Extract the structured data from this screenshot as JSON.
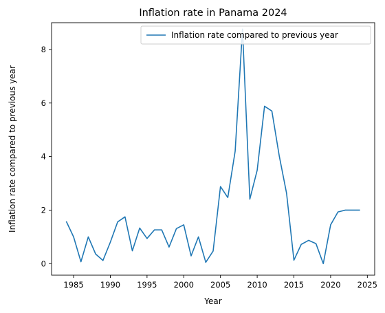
{
  "chart_data": {
    "type": "line",
    "title": "Inflation rate in Panama 2024",
    "xlabel": "Year",
    "ylabel": "Inflation rate compared to previous year",
    "xlim": [
      1982.0,
      2026.0
    ],
    "ylim": [
      -0.43,
      9.0
    ],
    "xticks": [
      1985,
      1990,
      1995,
      2000,
      2005,
      2010,
      2015,
      2020,
      2025
    ],
    "yticks": [
      0,
      2,
      4,
      6,
      8
    ],
    "grid": false,
    "legend_position": "top-right",
    "series": [
      {
        "name": "Inflation rate compared to previous year",
        "color": "#1f77b4",
        "x": [
          1984,
          1985,
          1986,
          1987,
          1988,
          1989,
          1990,
          1991,
          1992,
          1993,
          1994,
          1995,
          1996,
          1997,
          1998,
          1999,
          2000,
          2001,
          2002,
          2003,
          2004,
          2005,
          2006,
          2007,
          2008,
          2009,
          2010,
          2011,
          2012,
          2013,
          2014,
          2015,
          2016,
          2017,
          2018,
          2019,
          2020,
          2021,
          2022,
          2023,
          2024
        ],
        "y": [
          1.58,
          1.0,
          0.07,
          1.0,
          0.36,
          0.12,
          0.8,
          1.56,
          1.75,
          0.48,
          1.33,
          0.94,
          1.26,
          1.26,
          0.62,
          1.31,
          1.45,
          0.29,
          1.0,
          0.05,
          0.47,
          2.88,
          2.47,
          4.2,
          8.76,
          2.41,
          3.49,
          5.88,
          5.7,
          4.03,
          2.63,
          0.13,
          0.72,
          0.87,
          0.75,
          0.0,
          1.45,
          1.93,
          2.0,
          2.0,
          2.0
        ]
      }
    ]
  }
}
